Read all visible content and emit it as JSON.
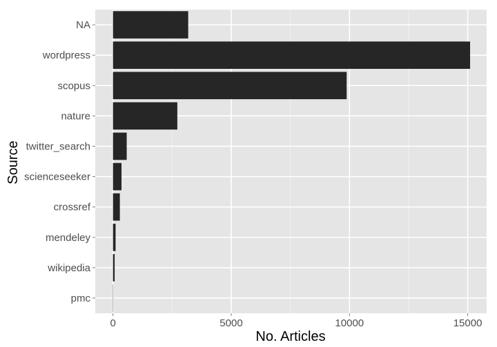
{
  "chart_data": {
    "type": "bar",
    "orientation": "horizontal",
    "title": "",
    "xlabel": "No. Articles",
    "ylabel": "Source",
    "categories": [
      "NA",
      "wordpress",
      "scopus",
      "nature",
      "twitter_search",
      "scienceseeker",
      "crossref",
      "mendeley",
      "wikipedia",
      "pmc"
    ],
    "values": [
      3180,
      15100,
      9880,
      2720,
      580,
      360,
      290,
      110,
      70,
      10
    ],
    "xlim": [
      -750,
      15800
    ],
    "xticks": [
      0,
      5000,
      10000,
      15000
    ],
    "xtick_labels": [
      "0",
      "5000",
      "10000",
      "15000"
    ],
    "grid": true,
    "colors": {
      "panel": "#e5e5e5",
      "grid_major": "#ffffff",
      "grid_minor": "#f0f0f0",
      "bar": "#262626",
      "tick_text": "#4d4d4d",
      "tick_mark": "#7f7f7f",
      "title_text": "#000000"
    }
  }
}
